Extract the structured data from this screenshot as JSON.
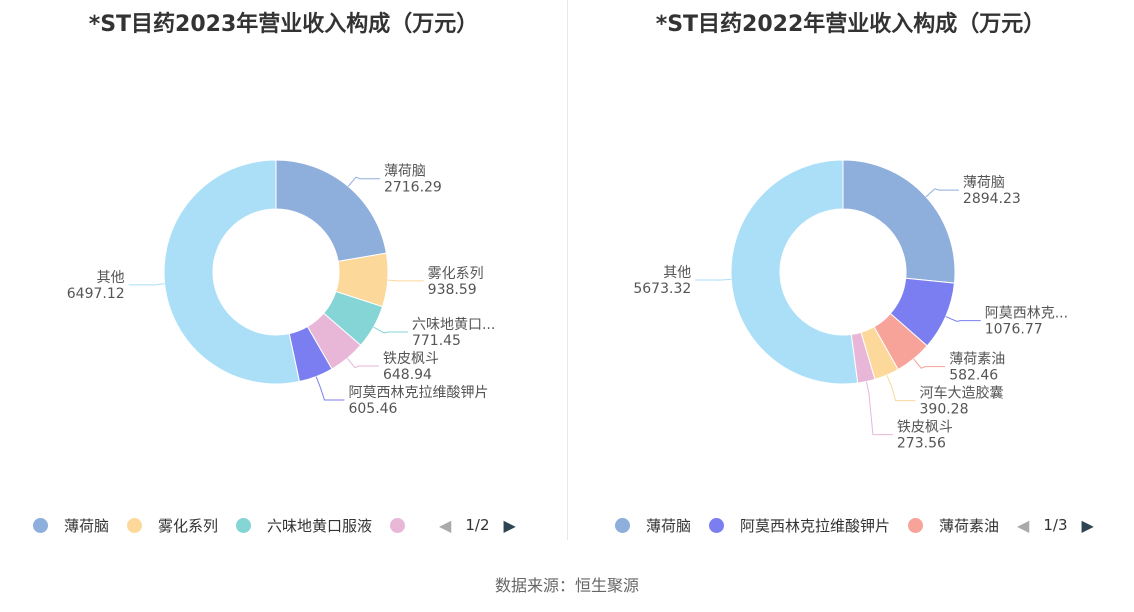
{
  "chart_data": [
    {
      "type": "pie",
      "title": "*ST目药2023年营业收入构成（万元）",
      "slices": [
        {
          "name": "薄荷脑",
          "label": "薄荷脑",
          "value": 2716.29,
          "value_label": "2716.29",
          "color": "#8eaedb"
        },
        {
          "name": "雾化系列",
          "label": "雾化系列",
          "value": 938.59,
          "value_label": "938.59",
          "color": "#fcd89a"
        },
        {
          "name": "六味地黄口服液",
          "label": "六味地黄口...",
          "value": 771.45,
          "value_label": "771.45",
          "color": "#85d4d6"
        },
        {
          "name": "铁皮枫斗",
          "label": "铁皮枫斗",
          "value": 648.94,
          "value_label": "648.94",
          "color": "#e8b7d8"
        },
        {
          "name": "阿莫西林克拉维酸钾片",
          "label": "阿莫西林克拉维酸钾片",
          "value": 605.46,
          "value_label": "605.46",
          "color": "#7b7ef0"
        },
        {
          "name": "其他",
          "label": "其他",
          "value": 6497.12,
          "value_label": "6497.12",
          "color": "#abdff8"
        }
      ],
      "legend": {
        "items": [
          {
            "name": "薄荷脑",
            "color": "#8eaedb"
          },
          {
            "name": "雾化系列",
            "color": "#fcd89a"
          },
          {
            "name": "六味地黄口服液",
            "color": "#85d4d6"
          },
          {
            "name": "",
            "color": "#e8b7d8"
          }
        ],
        "page": "1/2"
      }
    },
    {
      "type": "pie",
      "title": "*ST目药2022年营业收入构成（万元）",
      "slices": [
        {
          "name": "薄荷脑",
          "label": "薄荷脑",
          "value": 2894.23,
          "value_label": "2894.23",
          "color": "#8eaedb"
        },
        {
          "name": "阿莫西林克拉维酸钾片",
          "label": "阿莫西林克...",
          "value": 1076.77,
          "value_label": "1076.77",
          "color": "#7b7ef0"
        },
        {
          "name": "薄荷素油",
          "label": "薄荷素油",
          "value": 582.46,
          "value_label": "582.46",
          "color": "#f7a399"
        },
        {
          "name": "河车大造胶囊",
          "label": "河车大造胶囊",
          "value": 390.28,
          "value_label": "390.28",
          "color": "#fcd89a"
        },
        {
          "name": "铁皮枫斗",
          "label": "铁皮枫斗",
          "value": 273.56,
          "value_label": "273.56",
          "color": "#e8b7d8"
        },
        {
          "name": "其他",
          "label": "其他",
          "value": 5673.32,
          "value_label": "5673.32",
          "color": "#abdff8"
        }
      ],
      "legend": {
        "items": [
          {
            "name": "薄荷脑",
            "color": "#8eaedb"
          },
          {
            "name": "阿莫西林克拉维酸钾片",
            "color": "#7b7ef0"
          },
          {
            "name": "薄荷素油",
            "color": "#f7a399"
          }
        ],
        "page": "1/3"
      }
    }
  ],
  "source_text": "数据来源：恒生聚源"
}
